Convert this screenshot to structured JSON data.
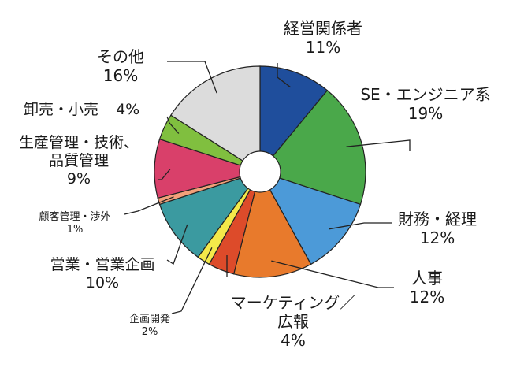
{
  "chart_data": {
    "type": "pie",
    "title": "",
    "slices": [
      {
        "name": "経営関係者",
        "label": "11%",
        "value": 11,
        "color": "#1f4e9c"
      },
      {
        "name": "SE・エンジニア系",
        "label": "19%",
        "value": 19,
        "color": "#4aa84a"
      },
      {
        "name": "財務・経理",
        "label": "12%",
        "value": 12,
        "color": "#4c9ad8"
      },
      {
        "name": "人事",
        "label": "12%",
        "value": 12,
        "color": "#e87a2c"
      },
      {
        "name": "マーケティング／広報",
        "label": "4%",
        "value": 4,
        "color": "#dd4b2a"
      },
      {
        "name": "企画開発",
        "label": "2%",
        "value": 2,
        "color": "#f4e94a"
      },
      {
        "name": "営業・営業企画",
        "label": "10%",
        "value": 10,
        "color": "#3b9aa0"
      },
      {
        "name": "顧客管理・渉外",
        "label": "1%",
        "value": 1,
        "color": "#f2a07a"
      },
      {
        "name": "生産管理・技術、品質管理",
        "label": "9%",
        "value": 9,
        "color": "#d9406a"
      },
      {
        "name": "卸売・小売",
        "label": "4%",
        "value": 4,
        "color": "#80bf3f"
      },
      {
        "name": "その他",
        "label": "16%",
        "value": 16,
        "color": "#dcdcdc"
      }
    ]
  }
}
